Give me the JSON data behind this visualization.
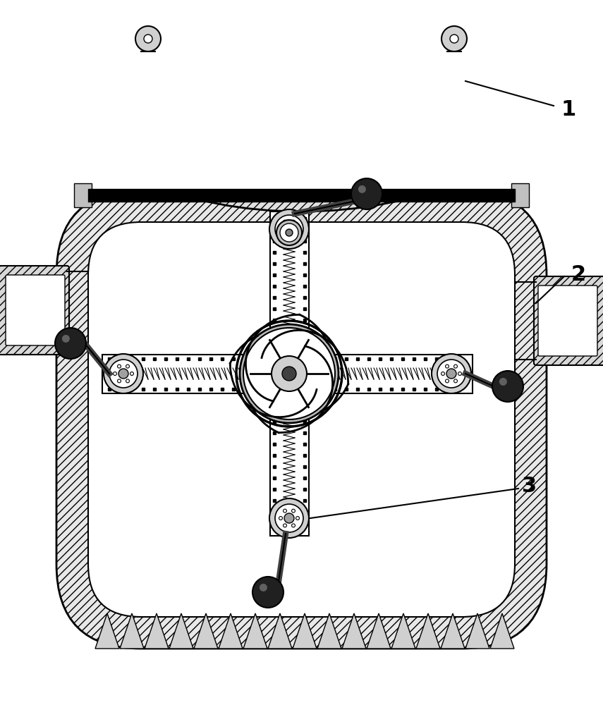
{
  "bg_color": "#ffffff",
  "line_color": "#000000",
  "hatch_color": "#000000",
  "label1": "1",
  "label2": "2",
  "label3": "3",
  "figsize": [
    8.55,
    10.0
  ],
  "dpi": 100
}
